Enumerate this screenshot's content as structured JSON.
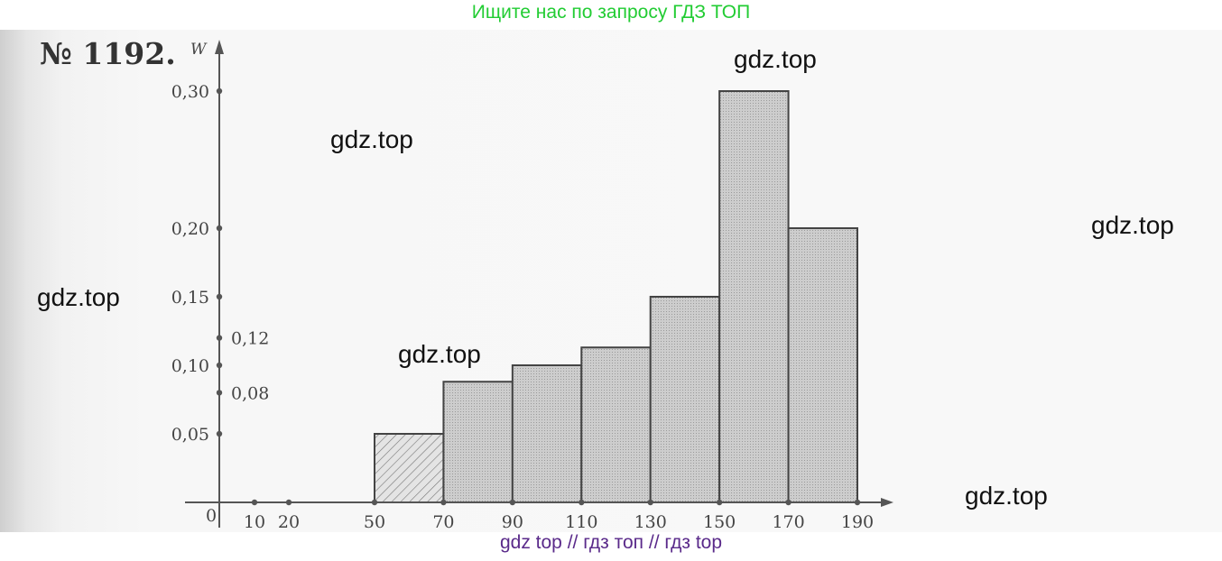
{
  "banners": {
    "top": "Ищите нас по запросу ГДЗ ТОП",
    "bottom": "gdz top  //  гдз топ  //  гдз top"
  },
  "problem_number": "№ 1192.",
  "watermarks": [
    "gdz.top",
    "gdz.top",
    "gdz.top",
    "gdz.top",
    "gdz.top",
    "gdz.top"
  ],
  "colors": {
    "bar_fill": "#c9c9c9",
    "first_bar_fill": "#dcdcdc",
    "axis": "#555555",
    "top_banner": "#22cc33",
    "bottom_banner": "#5a2a8a"
  },
  "chart_data": {
    "type": "bar",
    "title": "",
    "ylabel": "W",
    "xlabel": "",
    "origin_label": "0",
    "x_ticks": [
      10,
      20,
      50,
      70,
      90,
      110,
      130,
      150,
      170,
      190
    ],
    "x_tick_labels": [
      "10",
      "20",
      "50",
      "70",
      "90",
      "110",
      "130",
      "150",
      "170",
      "190"
    ],
    "y_ticks": [
      0.05,
      0.1,
      0.15,
      0.2,
      0.3
    ],
    "y_tick_labels": [
      "0,05",
      "0,10",
      "0,15",
      "0,20",
      "0,30"
    ],
    "y_extra_ticks": [
      0.12,
      0.08
    ],
    "y_extra_tick_labels": [
      "0,12",
      "0,08"
    ],
    "bars": [
      {
        "from": 50,
        "to": 70,
        "value": 0.05,
        "hatched": true
      },
      {
        "from": 70,
        "to": 90,
        "value": 0.088
      },
      {
        "from": 90,
        "to": 110,
        "value": 0.1
      },
      {
        "from": 110,
        "to": 130,
        "value": 0.113
      },
      {
        "from": 130,
        "to": 150,
        "value": 0.15
      },
      {
        "from": 150,
        "to": 170,
        "value": 0.3
      },
      {
        "from": 170,
        "to": 190,
        "value": 0.2
      }
    ],
    "xlim": [
      0,
      190
    ],
    "ylim": [
      0,
      0.3
    ],
    "grid": false,
    "legend": "none"
  }
}
